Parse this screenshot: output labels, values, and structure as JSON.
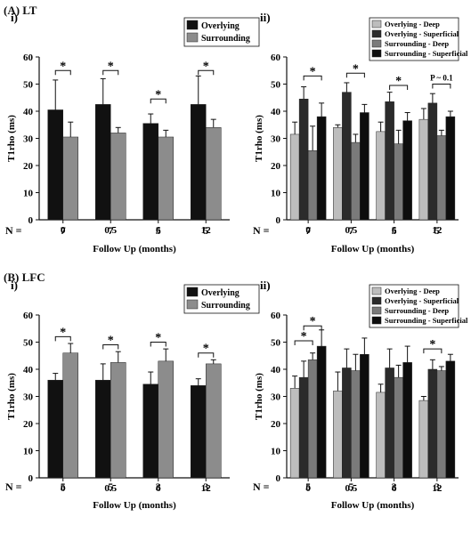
{
  "sections": [
    {
      "label": "(A) LT"
    },
    {
      "label": "(B) LFC"
    }
  ],
  "chart_data": [
    {
      "id": "A-i",
      "type": "bar",
      "panel_label": "i)",
      "ylabel": "T1rho (ms)",
      "xlabel": "Follow Up (months)",
      "ylim": [
        0,
        60
      ],
      "yticks": [
        0,
        10,
        20,
        30,
        40,
        50,
        60
      ],
      "categories": [
        "0",
        "0.5",
        "6",
        "12"
      ],
      "n_label": "N =",
      "n_values": [
        "7",
        "7",
        "5",
        "5"
      ],
      "legend": {
        "position": "top-right"
      },
      "series": [
        {
          "name": "Overlying",
          "color": "#111111",
          "values": [
            40.5,
            42.5,
            35.5,
            42.5
          ],
          "errors": [
            11,
            9.5,
            3.5,
            10.5
          ]
        },
        {
          "name": "Surrounding",
          "color": "#8c8c8c",
          "values": [
            30.5,
            32,
            30.5,
            34
          ],
          "errors": [
            5.5,
            2,
            2.5,
            3
          ]
        }
      ],
      "annotations": [
        {
          "from": [
            0,
            0
          ],
          "to": [
            0,
            1
          ],
          "y": 55,
          "text": "*"
        },
        {
          "from": [
            1,
            0
          ],
          "to": [
            1,
            1
          ],
          "y": 55,
          "text": "*"
        },
        {
          "from": [
            2,
            0
          ],
          "to": [
            2,
            1
          ],
          "y": 44.5,
          "text": "*"
        },
        {
          "from": [
            3,
            0
          ],
          "to": [
            3,
            1
          ],
          "y": 55,
          "text": "*"
        }
      ]
    },
    {
      "id": "A-ii",
      "type": "bar",
      "panel_label": "ii)",
      "ylabel": "T1rho (ms)",
      "xlabel": "Follow Up (months)",
      "ylim": [
        0,
        60
      ],
      "yticks": [
        0,
        10,
        20,
        30,
        40,
        50,
        60
      ],
      "categories": [
        "0",
        "0.5",
        "6",
        "12"
      ],
      "n_label": "N =",
      "n_values": [
        "7",
        "7",
        "5",
        "5"
      ],
      "legend": {
        "position": "top"
      },
      "series": [
        {
          "name": "Overlying - Deep",
          "color": "#bdbdbd",
          "values": [
            31.5,
            34,
            32.5,
            37
          ],
          "errors": [
            4.5,
            1,
            3.5,
            4
          ]
        },
        {
          "name": "Overlying - Superficial",
          "color": "#2b2b2b",
          "values": [
            44.5,
            47,
            43.5,
            43
          ],
          "errors": [
            4.5,
            3.5,
            3.5,
            3.5
          ]
        },
        {
          "name": "Surrounding - Deep",
          "color": "#7a7a7a",
          "values": [
            25.5,
            28.5,
            28,
            31
          ],
          "errors": [
            9,
            3,
            5,
            2
          ]
        },
        {
          "name": "Surrounding - Superficial",
          "color": "#0d0d0d",
          "values": [
            38,
            39.5,
            36.5,
            38
          ],
          "errors": [
            5,
            3,
            3,
            2
          ]
        }
      ],
      "annotations": [
        {
          "from": [
            0,
            1
          ],
          "to": [
            0,
            3
          ],
          "y": 53,
          "text": "*"
        },
        {
          "from": [
            1,
            1
          ],
          "to": [
            1,
            3
          ],
          "y": 54,
          "text": "*"
        },
        {
          "from": [
            2,
            1
          ],
          "to": [
            2,
            3
          ],
          "y": 49.5,
          "text": "*"
        },
        {
          "from": [
            3,
            1
          ],
          "to": [
            3,
            3
          ],
          "y": 50,
          "text": "P ~ 0.1"
        }
      ]
    },
    {
      "id": "B-i",
      "type": "bar",
      "panel_label": "i)",
      "ylabel": "T1rho (ms)",
      "xlabel": "Follow Up (months)",
      "ylim": [
        0,
        60
      ],
      "yticks": [
        0,
        10,
        20,
        30,
        40,
        50,
        60
      ],
      "categories": [
        "0",
        "0.5",
        "6",
        "12"
      ],
      "n_label": "N =",
      "n_values": [
        "5",
        "5",
        "3",
        "3"
      ],
      "legend": {
        "position": "top-right"
      },
      "series": [
        {
          "name": "Overlying",
          "color": "#111111",
          "values": [
            36,
            36,
            34.5,
            34
          ],
          "errors": [
            2.5,
            6,
            4.5,
            2.5
          ]
        },
        {
          "name": "Surrounding",
          "color": "#8c8c8c",
          "values": [
            46,
            42.5,
            43,
            42
          ],
          "errors": [
            3.5,
            4,
            4.5,
            1.5
          ]
        }
      ],
      "annotations": [
        {
          "from": [
            0,
            0
          ],
          "to": [
            0,
            1
          ],
          "y": 52,
          "text": "*"
        },
        {
          "from": [
            1,
            0
          ],
          "to": [
            1,
            1
          ],
          "y": 49,
          "text": "*"
        },
        {
          "from": [
            2,
            0
          ],
          "to": [
            2,
            1
          ],
          "y": 50,
          "text": "*"
        },
        {
          "from": [
            3,
            0
          ],
          "to": [
            3,
            1
          ],
          "y": 46,
          "text": "*"
        }
      ]
    },
    {
      "id": "B-ii",
      "type": "bar",
      "panel_label": "ii)",
      "ylabel": "T1rho (ms)",
      "xlabel": "Follow Up (months)",
      "ylim": [
        0,
        60
      ],
      "yticks": [
        0,
        10,
        20,
        30,
        40,
        50,
        60
      ],
      "categories": [
        "0",
        "0.5",
        "6",
        "12"
      ],
      "n_label": "N =",
      "n_values": [
        "5",
        "5",
        "3",
        "3"
      ],
      "legend": {
        "position": "top"
      },
      "series": [
        {
          "name": "Overlying - Deep",
          "color": "#bdbdbd",
          "values": [
            33,
            32,
            31.5,
            28.5
          ],
          "errors": [
            4.5,
            7,
            3,
            1.5
          ]
        },
        {
          "name": "Overlying - Superficial",
          "color": "#2b2b2b",
          "values": [
            37,
            40.5,
            40.5,
            40
          ],
          "errors": [
            6,
            7,
            7,
            3.5
          ]
        },
        {
          "name": "Surrounding - Deep",
          "color": "#7a7a7a",
          "values": [
            43.5,
            39.5,
            37,
            39.5
          ],
          "errors": [
            2.5,
            6,
            4.5,
            1.5
          ]
        },
        {
          "name": "Surrounding - Superficial",
          "color": "#0d0d0d",
          "values": [
            48.5,
            45.5,
            42.5,
            43
          ],
          "errors": [
            6,
            6,
            6,
            2.5
          ]
        }
      ],
      "annotations": [
        {
          "from": [
            0,
            0
          ],
          "to": [
            0,
            2
          ],
          "y": 50.5,
          "text": "*"
        },
        {
          "from": [
            0,
            1
          ],
          "to": [
            0,
            3
          ],
          "y": 56,
          "text": "*"
        },
        {
          "from": [
            3,
            0
          ],
          "to": [
            3,
            2
          ],
          "y": 47.5,
          "text": "*"
        }
      ]
    }
  ]
}
